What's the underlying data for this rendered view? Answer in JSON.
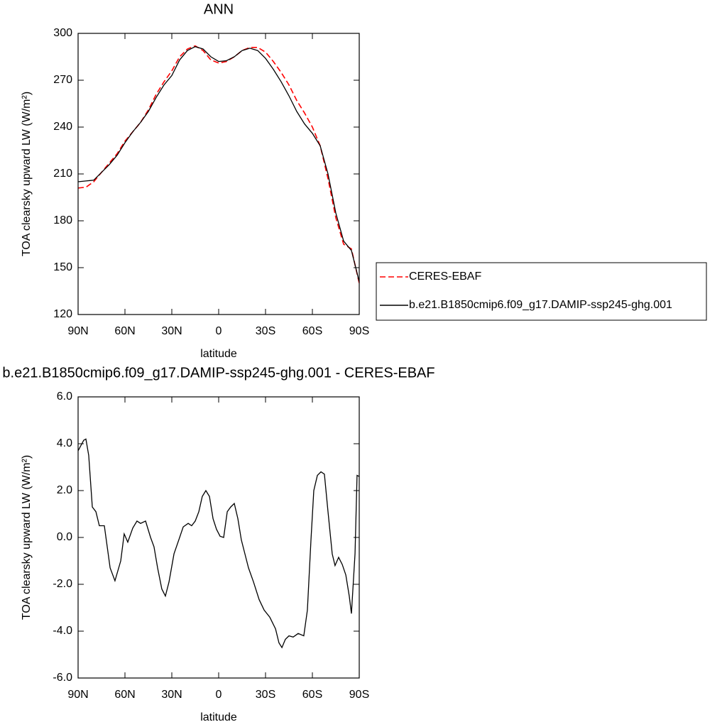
{
  "chart_data": [
    {
      "type": "line",
      "title": "ANN",
      "x_label": "latitude",
      "y_label": "TOA clearsky upward LW (W/m²)",
      "xlim": [
        90,
        -90
      ],
      "ylim": [
        120,
        300
      ],
      "xticks": [
        {
          "value": 90,
          "label": "90N"
        },
        {
          "value": 60,
          "label": "60N"
        },
        {
          "value": 30,
          "label": "30N"
        },
        0,
        {
          "value": -30,
          "label": "30S"
        },
        {
          "value": -60,
          "label": "60S"
        },
        {
          "value": -90,
          "label": "90S"
        }
      ],
      "yticks": [
        120,
        150,
        180,
        210,
        240,
        270,
        300
      ],
      "x": [
        90,
        85,
        80,
        75,
        70,
        65,
        60,
        55,
        50,
        45,
        40,
        35,
        30,
        25,
        20,
        15,
        10,
        5,
        0,
        -5,
        -10,
        -15,
        -20,
        -25,
        -30,
        -35,
        -40,
        -45,
        -50,
        -55,
        -60,
        -65,
        -70,
        -75,
        -80,
        -85,
        -90
      ],
      "series": [
        {
          "name": "CERES-EBAF",
          "color": "#ff0000",
          "dash": true,
          "values": [
            201,
            201.5,
            205,
            211,
            217,
            223,
            231,
            237,
            243,
            251,
            261,
            269,
            276,
            285,
            290,
            292,
            289,
            283,
            281,
            282,
            285,
            289,
            291,
            291,
            288,
            282,
            275,
            267,
            257,
            249,
            240,
            228,
            207,
            182,
            165,
            162,
            140
          ]
        },
        {
          "name": "b.e21.B1850cmip6.f09_g17.DAMIP-ssp245-ghg.001",
          "color": "#000000",
          "dash": false,
          "values": [
            205,
            205.5,
            206,
            211,
            216,
            222,
            230,
            237,
            243,
            250,
            259,
            267,
            273,
            283,
            289,
            291.5,
            290,
            285,
            282,
            282.5,
            285,
            289,
            290.5,
            289,
            284,
            277,
            269,
            260,
            250,
            242,
            236,
            228,
            210,
            185,
            167,
            161,
            141
          ]
        }
      ]
    },
    {
      "type": "line",
      "title": "b.e21.B1850cmip6.f09_g17.DAMIP-ssp245-ghg.001 - CERES-EBAF",
      "x_label": "latitude",
      "y_label": "TOA clearsky upward LW (W/m²)",
      "xlim": [
        90,
        -90
      ],
      "ylim": [
        -6,
        6
      ],
      "xticks": [
        {
          "value": 90,
          "label": "90N"
        },
        {
          "value": 60,
          "label": "60N"
        },
        {
          "value": 30,
          "label": "30N"
        },
        0,
        {
          "value": -30,
          "label": "30S"
        },
        {
          "value": -60,
          "label": "60S"
        },
        {
          "value": -90,
          "label": "90S"
        }
      ],
      "yticks": [
        {
          "value": -6,
          "label": "-6.0"
        },
        {
          "value": -4,
          "label": "-4.0"
        },
        {
          "value": -2,
          "label": "-2.0"
        },
        {
          "value": 0,
          "label": "0.0"
        },
        {
          "value": 2,
          "label": "2.0"
        },
        {
          "value": 4,
          "label": "4.0"
        },
        {
          "value": 6,
          "label": "6.0"
        }
      ],
      "color": "#000000",
      "x": [
        90,
        86.4,
        85,
        83.2,
        80.9,
        78.6,
        76.4,
        73.2,
        69.5,
        66.4,
        62.7,
        60.5,
        58.2,
        55,
        52.3,
        50,
        46.8,
        43.6,
        41.4,
        39.1,
        36.4,
        34.1,
        31.8,
        28.6,
        25.5,
        22.7,
        19.5,
        17.3,
        15,
        12.7,
        10.5,
        8.2,
        5.9,
        3.6,
        1.4,
        -0.9,
        -3.2,
        -5.5,
        -7.7,
        -10,
        -12.3,
        -14.5,
        -16.8,
        -19.1,
        -22.3,
        -25.9,
        -29.1,
        -32.7,
        -36.4,
        -38.6,
        -40.5,
        -42.7,
        -45,
        -47.7,
        -50.9,
        -54.5,
        -56.8,
        -59.1,
        -60.9,
        -63.2,
        -65.5,
        -67.7,
        -70,
        -72.7,
        -74.5,
        -76.8,
        -79.1,
        -81.4,
        -83.6,
        -85,
        -87.3,
        -88.6,
        -90
      ],
      "values": [
        3.7,
        4.15,
        4.2,
        3.5,
        1.3,
        1.1,
        0.5,
        0.5,
        -1.3,
        -1.85,
        -1.0,
        0.15,
        -0.2,
        0.4,
        0.7,
        0.6,
        0.7,
        0,
        -0.4,
        -1.3,
        -2.2,
        -2.5,
        -1.9,
        -0.7,
        -0.1,
        0.45,
        0.6,
        0.5,
        0.7,
        1.1,
        1.75,
        2.0,
        1.75,
        0.8,
        0.35,
        0.05,
        0,
        1.1,
        1.3,
        1.45,
        0.8,
        -0.1,
        -0.7,
        -1.3,
        -1.9,
        -2.65,
        -3.1,
        -3.4,
        -3.9,
        -4.5,
        -4.7,
        -4.35,
        -4.2,
        -4.25,
        -4.1,
        -4.2,
        -3.1,
        -0.1,
        2.0,
        2.65,
        2.8,
        2.7,
        1.1,
        -0.7,
        -1.2,
        -0.85,
        -1.15,
        -1.6,
        -2.5,
        -3.25,
        -0.7,
        2.65,
        2.6
      ]
    }
  ]
}
